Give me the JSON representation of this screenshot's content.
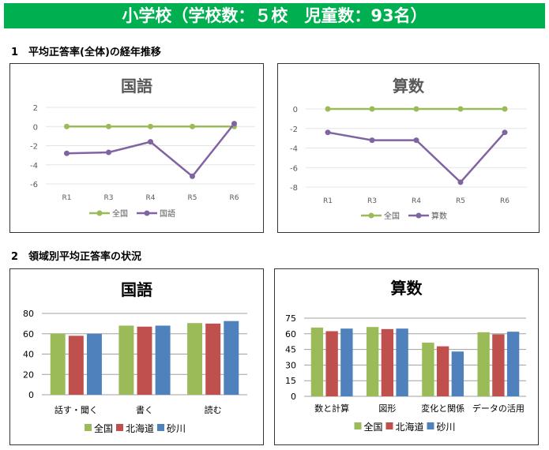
{
  "header": {
    "title": "小学校（学校数：５校　児童数：93名）"
  },
  "section1": {
    "title": "1　平均正答率(全体)の経年推移"
  },
  "section2": {
    "title": "2　領域別平均正答率の状況"
  },
  "colors": {
    "green": "#9bbb59",
    "purple": "#8064a2",
    "red": "#c0504d",
    "blue": "#4f81bd"
  },
  "chart_data": [
    {
      "type": "line",
      "title": "国語",
      "categories": [
        "R1",
        "R3",
        "R4",
        "R5",
        "R6"
      ],
      "ylim": [
        -6,
        2
      ],
      "yticks": [
        2,
        0,
        -2,
        -4,
        -6
      ],
      "grid": true,
      "legend": "bottom",
      "series": [
        {
          "name": "全国",
          "values": [
            0,
            0,
            0,
            0,
            0
          ],
          "color": "#9bbb59"
        },
        {
          "name": "国語",
          "values": [
            -2.8,
            -2.7,
            -1.6,
            -5.2,
            0.3
          ],
          "color": "#8064a2"
        }
      ]
    },
    {
      "type": "line",
      "title": "算数",
      "categories": [
        "R1",
        "R3",
        "R4",
        "R5",
        "R6"
      ],
      "ylim": [
        -8,
        0
      ],
      "yticks": [
        0,
        -2,
        -4,
        -6,
        -8
      ],
      "grid": true,
      "legend": "bottom",
      "series": [
        {
          "name": "全国",
          "values": [
            0,
            0,
            0,
            0,
            0
          ],
          "color": "#9bbb59"
        },
        {
          "name": "算数",
          "values": [
            -2.4,
            -3.2,
            -3.2,
            -7.5,
            -2.4
          ],
          "color": "#8064a2"
        }
      ]
    },
    {
      "type": "bar",
      "title": "国語",
      "categories": [
        "話す・聞く",
        "書く",
        "読む"
      ],
      "ylim": [
        0,
        80
      ],
      "yticks": [
        80,
        60,
        40,
        20,
        0
      ],
      "grid": true,
      "legend": "bottom",
      "series": [
        {
          "name": "全国",
          "values": [
            60,
            68,
            70.5
          ],
          "color": "#9bbb59"
        },
        {
          "name": "北海道",
          "values": [
            58,
            67,
            70
          ],
          "color": "#c0504d"
        },
        {
          "name": "砂川",
          "values": [
            60,
            68,
            72.5
          ],
          "color": "#4f81bd"
        }
      ]
    },
    {
      "type": "bar",
      "title": "算数",
      "categories": [
        "数と計算",
        "図形",
        "変化と関係",
        "データの活用"
      ],
      "ylim": [
        0,
        75
      ],
      "yticks": [
        75,
        60,
        45,
        30,
        15,
        0
      ],
      "grid": true,
      "legend": "bottom",
      "series": [
        {
          "name": "全国",
          "values": [
            66,
            66.5,
            51.5,
            61.5
          ],
          "color": "#9bbb59"
        },
        {
          "name": "北海道",
          "values": [
            62.5,
            64.5,
            48,
            59.5
          ],
          "color": "#c0504d"
        },
        {
          "name": "砂川",
          "values": [
            65,
            65,
            43,
            62
          ],
          "color": "#4f81bd"
        }
      ]
    }
  ]
}
